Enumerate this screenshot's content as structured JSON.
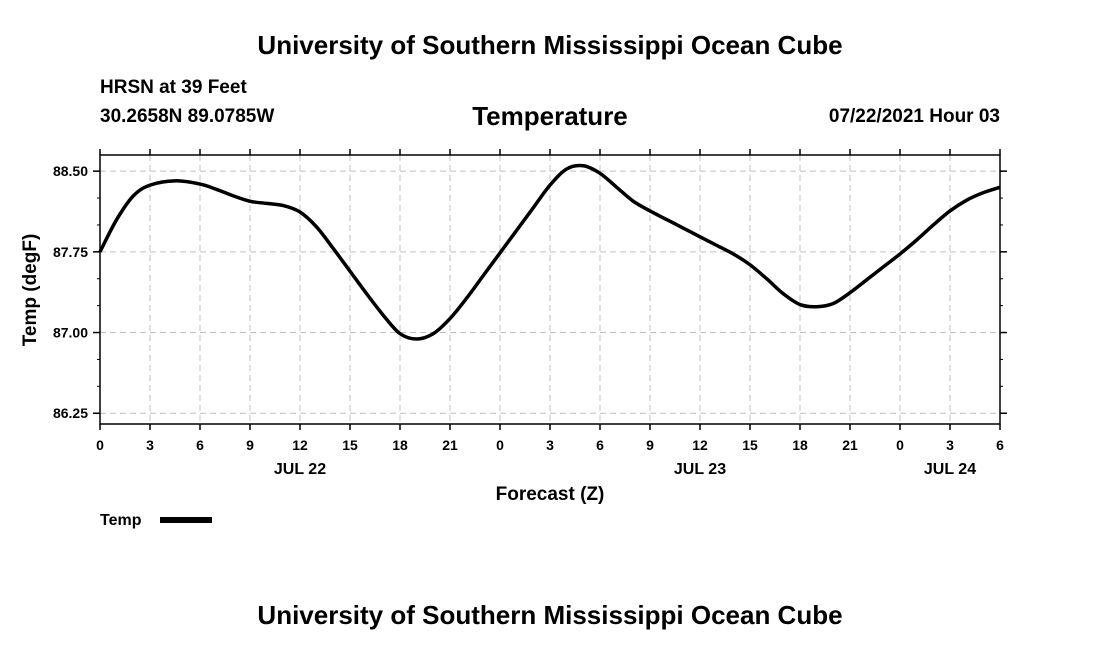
{
  "header": {
    "title": "University of Southern Mississippi Ocean Cube",
    "station": "HRSN at 39 Feet",
    "coords": "30.2658N  89.0785W",
    "valid_time": "07/22/2021 Hour 03"
  },
  "footer": {
    "title": "University of Southern Mississippi Ocean Cube"
  },
  "colors": {
    "line": "#000000",
    "grid": "#c0c0c0",
    "background": "#ffffff"
  },
  "chart_data": {
    "type": "line",
    "title": "Temperature",
    "xlabel": "Forecast (Z)",
    "ylabel": "Temp (degF)",
    "xlim": [
      0,
      54
    ],
    "ylim": [
      86.15,
      88.65
    ],
    "yticks": [
      86.25,
      87.0,
      87.75,
      88.5
    ],
    "ytick_labels": [
      "86.25",
      "87.00",
      "87.75",
      "88.50"
    ],
    "xticks": [
      0,
      3,
      6,
      9,
      12,
      15,
      18,
      21,
      24,
      27,
      30,
      33,
      36,
      39,
      42,
      45,
      48,
      51,
      54
    ],
    "xtick_labels": [
      "0",
      "3",
      "6",
      "9",
      "12",
      "15",
      "18",
      "21",
      "0",
      "3",
      "6",
      "9",
      "12",
      "15",
      "18",
      "21",
      "0",
      "3",
      "6"
    ],
    "date_labels": [
      {
        "x": 12,
        "label": "JUL 22"
      },
      {
        "x": 36,
        "label": "JUL 23"
      },
      {
        "x": 51,
        "label": "JUL 24"
      }
    ],
    "grid": true,
    "legend": {
      "position": "bottom-left",
      "label": "Temp"
    },
    "series": [
      {
        "name": "Temp",
        "x": [
          0,
          1,
          2,
          3,
          4.5,
          6,
          7,
          8,
          9,
          10,
          11,
          12,
          13,
          14,
          15,
          16,
          17,
          18,
          19,
          20,
          21,
          22,
          23,
          24,
          25,
          26,
          27,
          28,
          29,
          30,
          31,
          32,
          33,
          34,
          35,
          36,
          37,
          38,
          39,
          40,
          41,
          42,
          43,
          44,
          45,
          46,
          47,
          48,
          49,
          50,
          51,
          52,
          53,
          54
        ],
        "values": [
          87.75,
          88.05,
          88.27,
          88.37,
          88.41,
          88.38,
          88.33,
          88.27,
          88.22,
          88.2,
          88.18,
          88.12,
          87.98,
          87.78,
          87.57,
          87.36,
          87.16,
          86.99,
          86.94,
          86.99,
          87.13,
          87.32,
          87.53,
          87.74,
          87.95,
          88.16,
          88.37,
          88.52,
          88.55,
          88.48,
          88.35,
          88.22,
          88.13,
          88.05,
          87.97,
          87.89,
          87.81,
          87.73,
          87.63,
          87.5,
          87.36,
          87.26,
          87.24,
          87.27,
          87.37,
          87.49,
          87.61,
          87.73,
          87.86,
          88.0,
          88.13,
          88.23,
          88.3,
          88.35
        ]
      }
    ]
  }
}
